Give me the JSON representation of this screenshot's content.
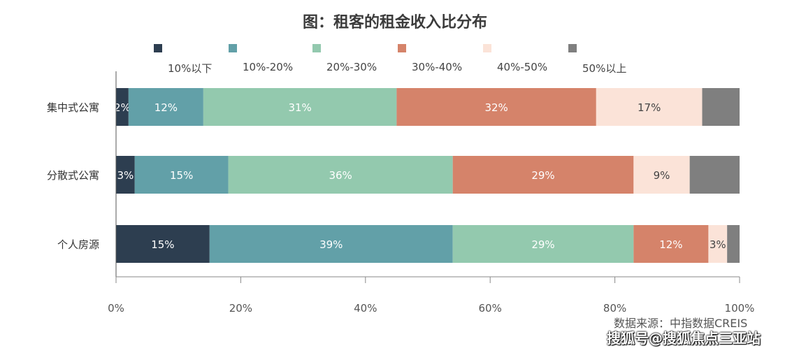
{
  "chart_data": {
    "type": "bar",
    "orientation": "horizontal-stacked",
    "title": "图：租客的租金收入比分布",
    "categories": [
      "集中式公寓",
      "分散式公寓",
      "个人房源"
    ],
    "series": [
      {
        "name": "10%以下",
        "color": "#2d3e50",
        "values": [
          2,
          3,
          15
        ],
        "labels": [
          "2%",
          "3%",
          "15%"
        ]
      },
      {
        "name": "10%-20%",
        "color": "#62a0a8",
        "values": [
          12,
          15,
          39
        ],
        "labels": [
          "12%",
          "15%",
          "39%"
        ]
      },
      {
        "name": "20%-30%",
        "color": "#93c9ae",
        "values": [
          31,
          36,
          29
        ],
        "labels": [
          "31%",
          "36%",
          "29%"
        ]
      },
      {
        "name": "30%-40%",
        "color": "#d5836a",
        "values": [
          32,
          29,
          12
        ],
        "labels": [
          "32%",
          "29%",
          "12%"
        ]
      },
      {
        "name": "40%-50%",
        "color": "#fbe3d8",
        "values": [
          17,
          9,
          3
        ],
        "labels": [
          "17%",
          "9%",
          "3%"
        ]
      },
      {
        "name": "50%以上",
        "color": "#7f7f7f",
        "values": [
          6,
          8,
          2
        ],
        "labels": [
          "",
          "",
          ""
        ]
      }
    ],
    "x_ticks": [
      "0%",
      "20%",
      "40%",
      "60%",
      "80%",
      "100%"
    ],
    "xlim": [
      0,
      100
    ],
    "legend_position": "top",
    "grid": false
  },
  "source": "数据来源：中指数据CREIS",
  "watermark": "搜狐号@搜狐焦点三亚站"
}
